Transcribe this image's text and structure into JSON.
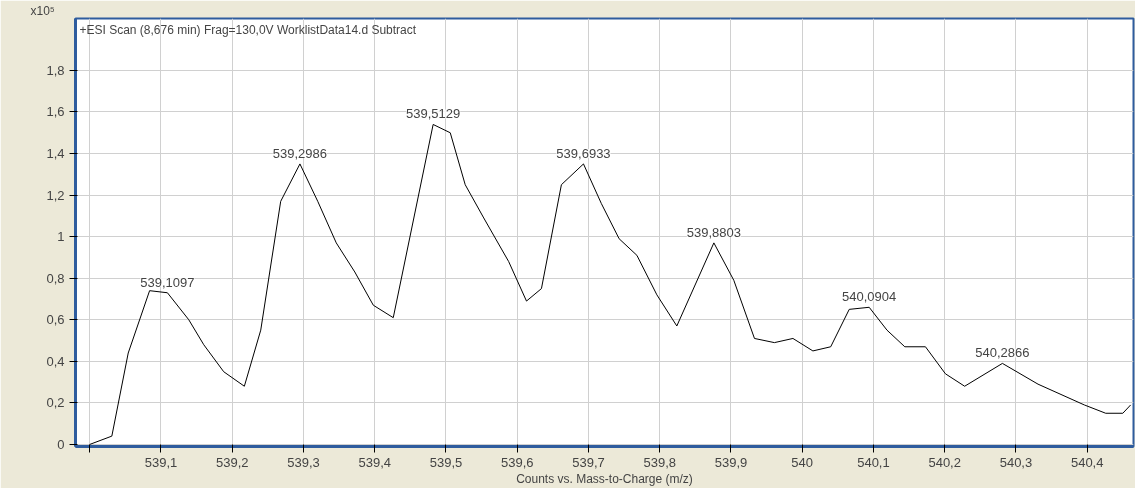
{
  "chart_data": {
    "type": "line",
    "title": "+ESI Scan (8,676 min) Frag=130,0V WorklistData14.d  Subtract",
    "xlabel": "Counts vs. Mass-to-Charge (m/z)",
    "ylabel": "x10⁵",
    "x": [
      539.0,
      539.031,
      539.054,
      539.084,
      539.109,
      539.139,
      539.16,
      539.188,
      539.217,
      539.24,
      539.268,
      539.295,
      539.32,
      539.346,
      539.372,
      539.398,
      539.426,
      539.482,
      539.506,
      539.527,
      539.553,
      539.588,
      539.613,
      539.634,
      539.662,
      539.693,
      539.718,
      539.743,
      539.768,
      539.796,
      539.824,
      539.876,
      539.904,
      539.933,
      539.961,
      539.987,
      540.015,
      540.04,
      540.066,
      540.094,
      540.119,
      540.144,
      540.173,
      540.201,
      540.228,
      540.281,
      540.331,
      540.396,
      540.426,
      540.45,
      540.461
    ],
    "series": [
      {
        "color": "#000000",
        "values": [
          0,
          0.04,
          0.44,
          0.74,
          0.73,
          0.6,
          0.48,
          0.35,
          0.28,
          0.55,
          1.17,
          1.35,
          1.17,
          0.97,
          0.83,
          0.67,
          0.61,
          1.54,
          1.5,
          1.25,
          1.09,
          0.88,
          0.69,
          0.75,
          1.25,
          1.35,
          1.16,
          0.99,
          0.91,
          0.72,
          0.57,
          0.97,
          0.79,
          0.51,
          0.49,
          0.51,
          0.45,
          0.47,
          0.65,
          0.66,
          0.55,
          0.47,
          0.47,
          0.34,
          0.28,
          0.39,
          0.29,
          0.19,
          0.15,
          0.15,
          0.19
        ]
      }
    ],
    "annotations": [
      {
        "text": "539,1097",
        "x": 539.109,
        "y": 0.73
      },
      {
        "text": "539,2986",
        "x": 539.295,
        "y": 1.35
      },
      {
        "text": "539,5129",
        "x": 539.482,
        "y": 1.54
      },
      {
        "text": "539,6933",
        "x": 539.693,
        "y": 1.35
      },
      {
        "text": "539,8803",
        "x": 539.876,
        "y": 0.97
      },
      {
        "text": "540,0904",
        "x": 540.094,
        "y": 0.66
      },
      {
        "text": "540,2866",
        "x": 540.281,
        "y": 0.39
      }
    ],
    "xlim": [
      538.98,
      540.465
    ],
    "xticks": [
      {
        "value": 539,
        "label": null
      },
      {
        "value": 539.1,
        "label": "539,1"
      },
      {
        "value": 539.2,
        "label": "539,2"
      },
      {
        "value": 539.3,
        "label": "539,3"
      },
      {
        "value": 539.4,
        "label": "539,4"
      },
      {
        "value": 539.5,
        "label": "539,5"
      },
      {
        "value": 539.6,
        "label": "539,6"
      },
      {
        "value": 539.7,
        "label": "539,7"
      },
      {
        "value": 539.8,
        "label": "539,8"
      },
      {
        "value": 539.9,
        "label": "539,9"
      },
      {
        "value": 540,
        "label": "540"
      },
      {
        "value": 540.1,
        "label": "540,1"
      },
      {
        "value": 540.2,
        "label": "540,2"
      },
      {
        "value": 540.3,
        "label": "540,3"
      },
      {
        "value": 540.4,
        "label": "540,4"
      }
    ],
    "ylim": [
      -0.01,
      2.05
    ],
    "yticks": [
      0,
      {
        "value": 0.2,
        "label": "0,2"
      },
      {
        "value": 0.4,
        "label": "0,4"
      },
      {
        "value": 0.6,
        "label": "0,6"
      },
      {
        "value": 0.8,
        "label": "0,8"
      },
      1,
      {
        "value": 1.2,
        "label": "1,2"
      },
      {
        "value": 1.4,
        "label": "1,4"
      },
      {
        "value": 1.6,
        "label": "1,6"
      },
      {
        "value": 1.8,
        "label": "1,8"
      }
    ],
    "grid": true,
    "marker": "none",
    "line_style": "solid"
  }
}
